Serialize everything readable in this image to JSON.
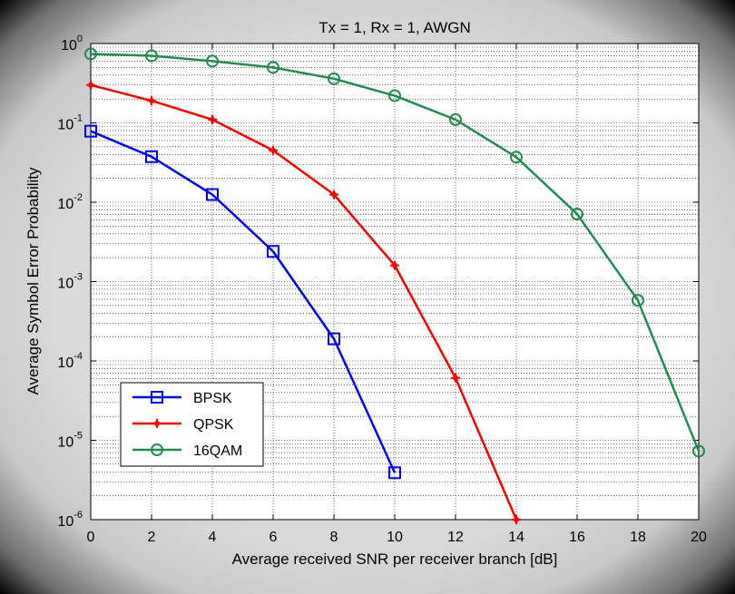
{
  "chart_data": {
    "type": "line",
    "title": "Tx = 1, Rx = 1, AWGN",
    "xlabel": "Average received SNR per receiver branch [dB]",
    "ylabel": "Average Symbol Error Probability",
    "xlim": [
      0,
      20
    ],
    "ylim": [
      1e-06,
      1
    ],
    "y_scale": "log",
    "grid": true,
    "legend_position": "bottom-left",
    "x_ticks": [
      "0",
      "2",
      "4",
      "6",
      "8",
      "10",
      "12",
      "14",
      "16",
      "18",
      "20"
    ],
    "y_ticks": [
      {
        "base": "10",
        "exp": "0",
        "value": 1
      },
      {
        "base": "10",
        "exp": "-1",
        "value": 0.1
      },
      {
        "base": "10",
        "exp": "-2",
        "value": 0.01
      },
      {
        "base": "10",
        "exp": "-3",
        "value": 0.001
      },
      {
        "base": "10",
        "exp": "-4",
        "value": 0.0001
      },
      {
        "base": "10",
        "exp": "-5",
        "value": 1e-05
      },
      {
        "base": "10",
        "exp": "-6",
        "value": 1e-06
      }
    ],
    "series": [
      {
        "name": "BPSK",
        "color": "#0000ff",
        "marker": "square",
        "x": [
          0,
          2,
          4,
          6,
          8,
          10
        ],
        "y": [
          0.0786,
          0.0375,
          0.0125,
          0.0024,
          0.00019,
          3.9e-06
        ]
      },
      {
        "name": "QPSK",
        "color": "#ff0000",
        "marker": "plus-dot",
        "x": [
          0,
          2,
          4,
          6,
          8,
          10,
          12,
          14
        ],
        "y": [
          0.3,
          0.19,
          0.11,
          0.045,
          0.0125,
          0.0016,
          6.1e-05,
          1e-06
        ]
      },
      {
        "name": "16QAM",
        "color": "#228b50",
        "marker": "circle",
        "x": [
          0,
          2,
          4,
          6,
          8,
          10,
          12,
          14,
          16,
          18,
          20
        ],
        "y": [
          0.74,
          0.7,
          0.6,
          0.5,
          0.36,
          0.22,
          0.11,
          0.037,
          0.0071,
          0.00058,
          7.3e-06
        ]
      }
    ]
  }
}
